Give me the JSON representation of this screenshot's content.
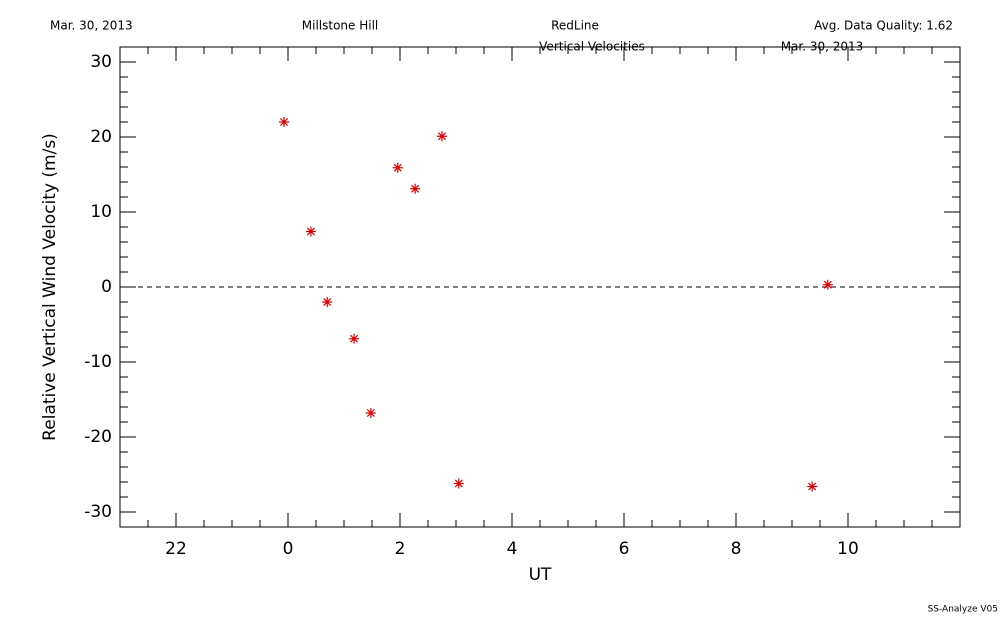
{
  "chart_data": {
    "type": "scatter",
    "header": [
      "Mar. 30, 2013",
      "Millstone Hill",
      "RedLine",
      "Avg. Data Quality: 1.62"
    ],
    "title": "Vertical Velocities",
    "subtitle": "Mar. 30, 2013",
    "xlabel": "UT",
    "ylabel": "Relative Vertical Wind Velocity (m/s)",
    "footer": "SS-Analyze V05",
    "x": [
      -0.07,
      0.41,
      0.7,
      1.18,
      1.48,
      1.96,
      2.27,
      2.75,
      3.05,
      9.36,
      9.64
    ],
    "values": [
      22.0,
      7.4,
      -2.0,
      -6.9,
      -16.8,
      15.9,
      13.1,
      20.1,
      -26.2,
      -26.6,
      0.3
    ],
    "color": "#e00000",
    "xlim": [
      -3,
      12
    ],
    "ylim": [
      -32,
      32
    ],
    "xticks": [
      {
        "value": -2,
        "label": "22"
      },
      0,
      2,
      4,
      6,
      8,
      10
    ],
    "yticks": [
      -30,
      -20,
      -10,
      0,
      10,
      20,
      30
    ],
    "xminorticks": [
      -2.5,
      -1.5,
      -1,
      -0.5,
      0.5,
      1,
      1.5,
      2.5,
      3,
      3.5,
      4.5,
      5,
      5.5,
      6.5,
      7,
      7.5,
      8.5,
      9,
      9.5,
      10.5,
      11,
      11.5
    ],
    "yminorticks": [
      -28,
      -26,
      -24,
      -22,
      -18,
      -16,
      -14,
      -12,
      -8,
      -6,
      -4,
      -2,
      2,
      4,
      6,
      8,
      12,
      14,
      16,
      18,
      22,
      24,
      26,
      28
    ],
    "reference_line": 0
  }
}
